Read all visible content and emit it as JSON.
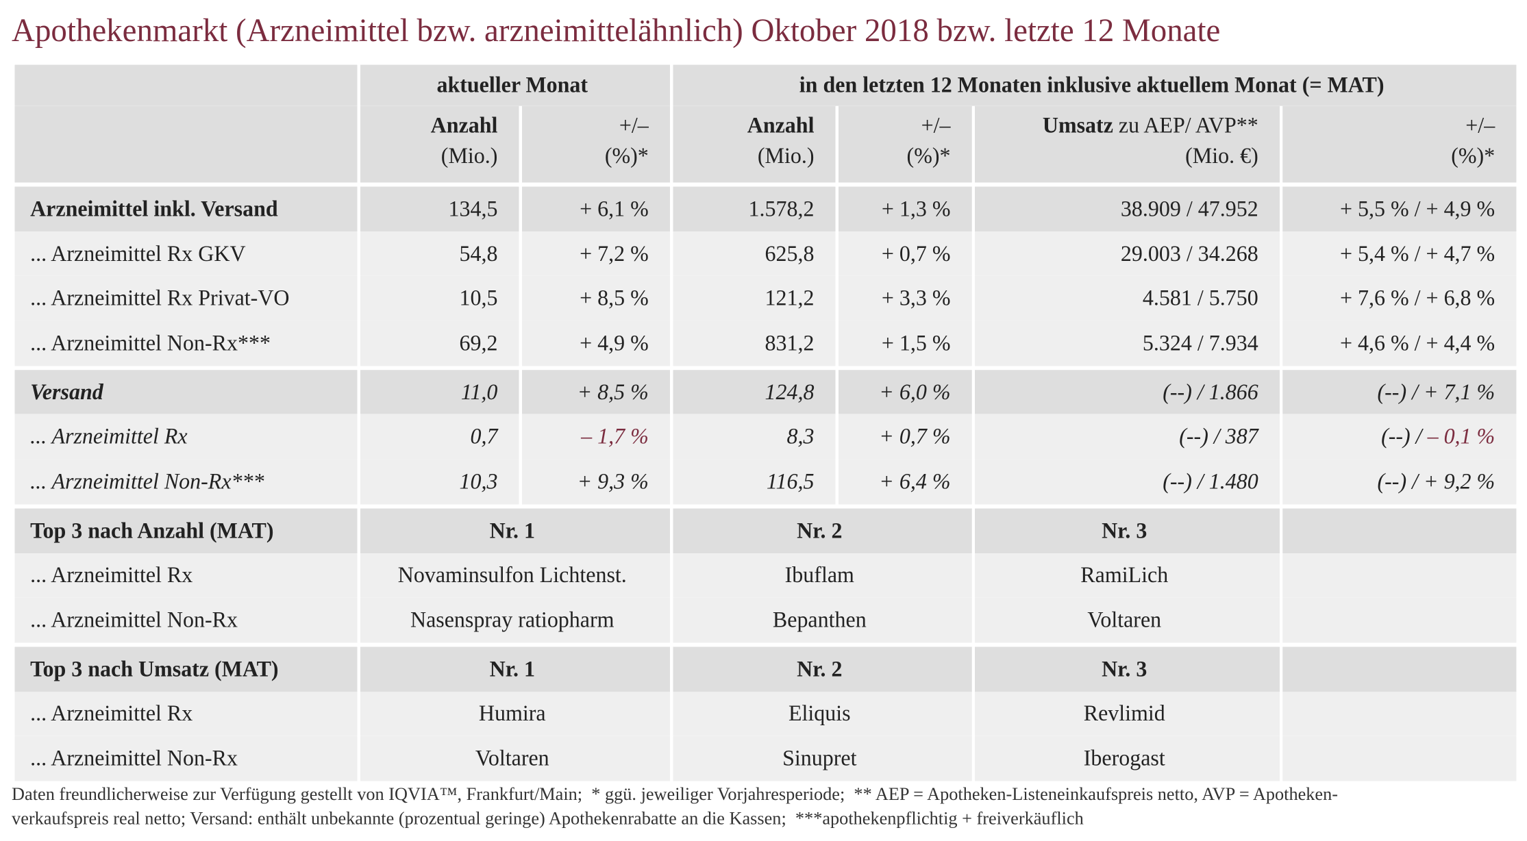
{
  "title": "Apothekenmarkt (Arzneimittel bzw. arzneimittelähnlich) Oktober 2018 bzw. letzte 12 Monate",
  "table": {
    "groups": [
      "aktueller Monat",
      "in den letzten 12 Monaten inklusive aktuellem Monat (= MAT)"
    ],
    "columns": [
      {
        "bold": "Anzahl",
        "sub": "(Mio.)"
      },
      {
        "text": "+/–",
        "sub": "(%)*"
      },
      {
        "bold": "Anzahl",
        "sub": "(Mio.)"
      },
      {
        "text": "+/–",
        "sub": "(%)*"
      },
      {
        "bold": "Umsatz",
        "text": " zu AEP/ AVP**",
        "sub": "(Mio. €)"
      },
      {
        "text": "+/–",
        "sub": "(%)*"
      }
    ],
    "sections": [
      {
        "italic": false,
        "rows": [
          {
            "label": "Arzneimittel inkl. Versand",
            "cells": [
              "134,5",
              "+ 6,1 %",
              "1.578,2",
              "+ 1,3 %",
              "38.909 / 47.952",
              "+ 5,5 % / + 4,9 %"
            ]
          },
          {
            "label": "... Arzneimittel Rx GKV",
            "cells": [
              "54,8",
              "+ 7,2 %",
              "625,8",
              "+ 0,7 %",
              "29.003 / 34.268",
              "+ 5,4 % / + 4,7 %"
            ]
          },
          {
            "label": "... Arzneimittel Rx Privat-VO",
            "cells": [
              "10,5",
              "+ 8,5 %",
              "121,2",
              "+ 3,3 %",
              "4.581 / 5.750",
              "+ 7,6 % / + 6,8 %"
            ]
          },
          {
            "label": "... Arzneimittel Non-Rx***",
            "cells": [
              "69,2",
              "+ 4,9 %",
              "831,2",
              "+ 1,5 %",
              "5.324 / 7.934",
              "+ 4,6 % / + 4,4 %"
            ]
          }
        ]
      },
      {
        "italic": true,
        "rows": [
          {
            "label": "Versand",
            "cells": [
              "11,0",
              "+ 8,5 %",
              "124,8",
              "+ 6,0 %",
              "(--) / 1.866",
              "(--) / + 7,1 %"
            ]
          },
          {
            "label": "... Arzneimittel Rx",
            "cells": [
              "0,7",
              [
                {
                  "text": "– 1,7 %",
                  "color": "#7b2c3f"
                }
              ],
              "8,3",
              "+ 0,7 %",
              "(--) / 387",
              [
                "(--) / ",
                {
                  "text": "– 0,1 %",
                  "color": "#7b2c3f"
                }
              ]
            ]
          },
          {
            "label": "... Arzneimittel Non-Rx***",
            "cells": [
              "10,3",
              "+ 9,3 %",
              "116,5",
              "+ 6,4 %",
              "(--) / 1.480",
              "(--) / + 9,2 %"
            ]
          }
        ]
      },
      {
        "ranked": true,
        "rows": [
          {
            "label": "Top 3 nach Anzahl (MAT)",
            "cells": [
              "Nr. 1",
              "Nr. 2",
              "Nr. 3"
            ]
          },
          {
            "label": "... Arzneimittel Rx",
            "cells": [
              "Novaminsulfon Lichtenst.",
              "Ibuflam",
              "RamiLich"
            ]
          },
          {
            "label": "... Arzneimittel Non-Rx",
            "cells": [
              "Nasenspray ratiopharm",
              "Bepanthen",
              "Voltaren"
            ]
          }
        ]
      },
      {
        "ranked": true,
        "rows": [
          {
            "label": "Top 3 nach Umsatz (MAT)",
            "cells": [
              "Nr. 1",
              "Nr. 2",
              "Nr. 3"
            ]
          },
          {
            "label": "... Arzneimittel Rx",
            "cells": [
              "Humira",
              "Eliquis",
              "Revlimid"
            ]
          },
          {
            "label": "... Arzneimittel Non-Rx",
            "cells": [
              "Voltaren",
              "Sinupret",
              "Iberogast"
            ]
          }
        ]
      }
    ]
  },
  "footnote": [
    "Daten freundlicherweise zur Verfügung gestellt von IQVIA™, Frankfurt/Main;  * ggü. jeweiliger Vorjahresperiode;  ** AEP = Apotheken-Listeneinkaufspreis netto, AVP = Apotheken-",
    "verkaufspreis real netto; Versand: enthält unbekannte (prozentual geringe) Apothekenrabatte an die Kassen;  ***apothekenpflichtig + freiverkäuflich"
  ]
}
